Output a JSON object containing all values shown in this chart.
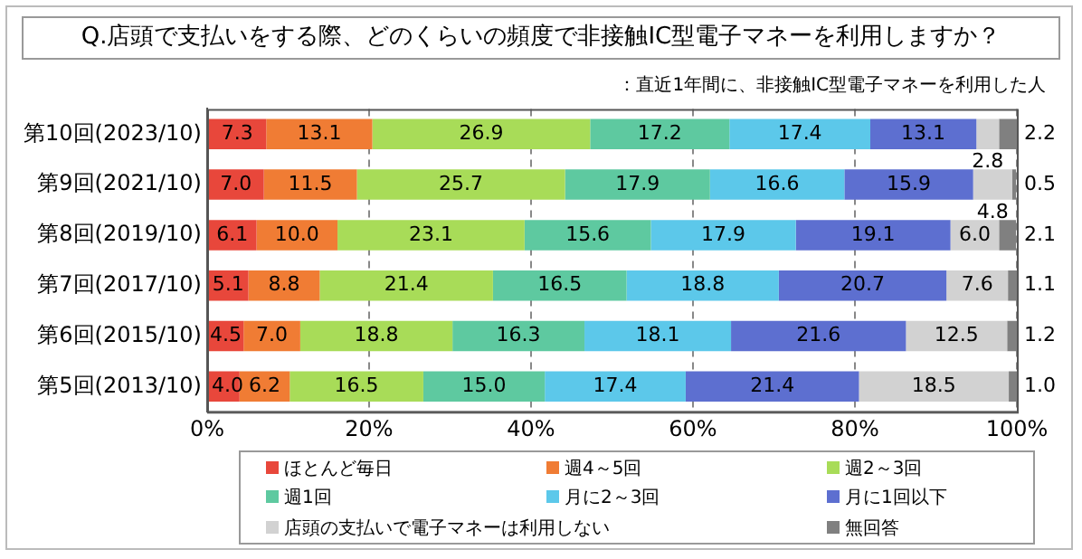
{
  "chart_data": {
    "type": "bar",
    "orientation": "horizontal",
    "stacked": true,
    "title": "Q.店頭で支払いをする際、どのくらいの頻度で非接触IC型電子マネーを利用しますか？",
    "annotations": [
      "：直近1年間に、非接触IC型電子マネーを利用した人"
    ],
    "categories": [
      "第10回(2023/10)",
      "第9回(2021/10)",
      "第8回(2019/10)",
      "第7回(2017/10)",
      "第6回(2015/10)",
      "第5回(2013/10)"
    ],
    "series": [
      {
        "name": "ほとんど毎日",
        "color": "#e8473b",
        "values": [
          7.3,
          7.0,
          6.1,
          5.1,
          4.5,
          4.0
        ],
        "value_labels": [
          "7.3",
          "7.0",
          "6.1",
          "5.1",
          "4.5",
          "4.0"
        ]
      },
      {
        "name": "週4～5回",
        "color": "#f07c34",
        "values": [
          13.1,
          11.5,
          10.0,
          8.8,
          7.0,
          6.2
        ],
        "value_labels": [
          "13.1",
          "11.5",
          "10.0",
          "8.8",
          "7.0",
          "6.2"
        ]
      },
      {
        "name": "週2～3回",
        "color": "#a8dc58",
        "values": [
          26.9,
          25.7,
          23.1,
          21.4,
          18.8,
          16.5
        ],
        "value_labels": [
          "26.9",
          "25.7",
          "23.1",
          "21.4",
          "18.8",
          "16.5"
        ]
      },
      {
        "name": "週1回",
        "color": "#5ec9a0",
        "values": [
          17.2,
          17.9,
          15.6,
          16.5,
          16.3,
          15.0
        ],
        "value_labels": [
          "17.2",
          "17.9",
          "15.6",
          "16.5",
          "16.3",
          "15.0"
        ]
      },
      {
        "name": "月に2～3回",
        "color": "#5cc8ea",
        "values": [
          17.4,
          16.6,
          17.9,
          18.8,
          18.1,
          17.4
        ],
        "value_labels": [
          "17.4",
          "16.6",
          "17.9",
          "18.8",
          "18.1",
          "17.4"
        ]
      },
      {
        "name": "月に1回以下",
        "color": "#5d6fd0",
        "values": [
          13.1,
          15.9,
          19.1,
          20.7,
          21.6,
          21.4
        ],
        "value_labels": [
          "13.1",
          "15.9",
          "19.1",
          "20.7",
          "21.6",
          "21.4"
        ]
      },
      {
        "name": "店頭の支払いで電子マネーは利用しない",
        "color": "#d2d2d2",
        "values": [
          2.8,
          4.8,
          6.0,
          7.6,
          12.5,
          18.5
        ],
        "value_labels": [
          "2.8",
          "4.8",
          "6.0",
          "7.6",
          "12.5",
          "18.5"
        ]
      },
      {
        "name": "無回答",
        "color": "#808080",
        "values": [
          2.2,
          0.5,
          2.1,
          1.1,
          1.2,
          1.0
        ],
        "value_labels": [
          "2.2",
          "0.5",
          "2.1",
          "1.1",
          "1.2",
          "1.0"
        ]
      }
    ],
    "xlim": [
      0,
      100
    ],
    "xticks": [
      {
        "value": 0,
        "label": "0%"
      },
      {
        "value": 20,
        "label": "20%"
      },
      {
        "value": 40,
        "label": "40%"
      },
      {
        "value": 60,
        "label": "60%"
      },
      {
        "value": 80,
        "label": "80%"
      },
      {
        "value": 100,
        "label": "100%"
      }
    ],
    "grid": "x",
    "legend": "bottom"
  }
}
